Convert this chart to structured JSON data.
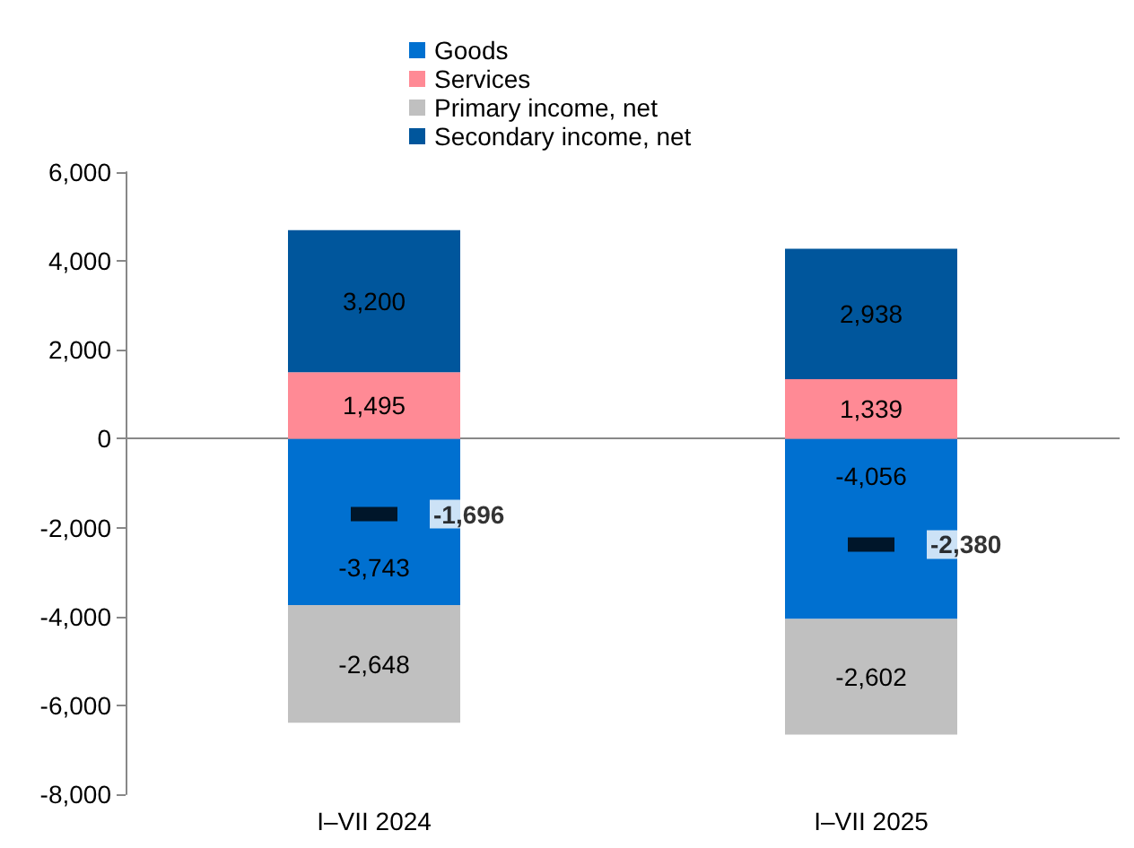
{
  "chart_data": {
    "type": "bar",
    "stacked": true,
    "categories": [
      "I–VII 2024",
      "I–VII 2025"
    ],
    "series": [
      {
        "name": "Goods",
        "color": "#0070d0",
        "values": [
          -3743,
          -4056
        ],
        "value_labels": [
          "-3,743",
          "-4,056"
        ]
      },
      {
        "name": "Services",
        "color": "#ff8a95",
        "values": [
          1495,
          1339
        ],
        "value_labels": [
          "1,495",
          "1,339"
        ]
      },
      {
        "name": "Primary income, net",
        "color": "#c0c0c0",
        "values": [
          -2648,
          -2602
        ],
        "value_labels": [
          "-2,648",
          "-2,602"
        ]
      },
      {
        "name": "Secondary income, net",
        "color": "#00569c",
        "values": [
          3200,
          2938
        ],
        "value_labels": [
          "3,200",
          "2,938"
        ]
      },
      {
        "type": "scatter",
        "color": "#000000",
        "marker": "square",
        "x": [
          "I–VII 2024",
          "I–VII 2025"
        ],
        "values": [
          -1696,
          -2380
        ],
        "value_labels": [
          "-1,696",
          "-2,380"
        ]
      }
    ],
    "ylim": [
      -8000,
      6000
    ],
    "yticks": [
      {
        "value": -8000,
        "label": "-8,000"
      },
      {
        "value": -6000,
        "label": "-6,000"
      },
      {
        "value": -4000,
        "label": "-4,000"
      },
      {
        "value": -2000,
        "label": "-2,000"
      },
      0,
      {
        "value": 2000,
        "label": "2,000"
      },
      {
        "value": 4000,
        "label": "4,000"
      },
      {
        "value": 6000,
        "label": "6,000"
      }
    ],
    "legend": "top"
  }
}
